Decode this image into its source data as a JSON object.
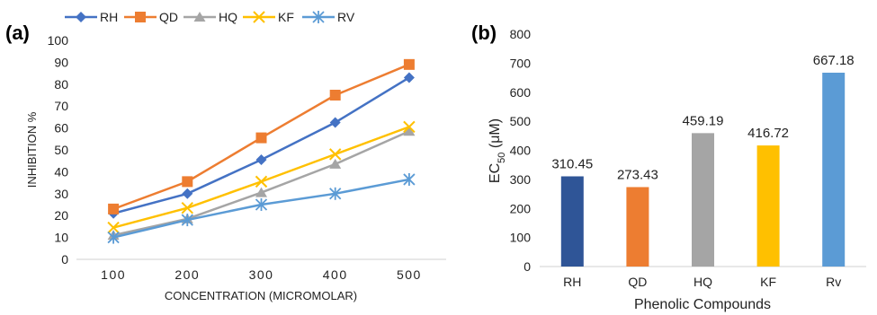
{
  "chart_data": [
    {
      "panel": "(a)",
      "type": "line",
      "categories": [
        "100",
        "200",
        "300",
        "400",
        "500"
      ],
      "series": [
        {
          "name": "RH",
          "color": "#4472c4",
          "marker": "diamond",
          "values": [
            21,
            30,
            45.5,
            62.5,
            83
          ]
        },
        {
          "name": "QD",
          "color": "#ed7d31",
          "marker": "square",
          "values": [
            23,
            35.5,
            55.5,
            75,
            89
          ]
        },
        {
          "name": "HQ",
          "color": "#a5a5a5",
          "marker": "triangle",
          "values": [
            11,
            18.5,
            30.5,
            43.5,
            58.5
          ]
        },
        {
          "name": "KF",
          "color": "#ffc000",
          "marker": "x",
          "values": [
            14.5,
            23.5,
            35.5,
            48,
            60.5
          ]
        },
        {
          "name": "RV",
          "color": "#5b9bd5",
          "marker": "star",
          "values": [
            10,
            18,
            25,
            30,
            36.5
          ]
        }
      ],
      "xlabel": "CONCENTRATION (MICROMOLAR)",
      "ylabel": "INHIBITION %",
      "ylim": [
        0,
        100
      ],
      "yticks": [
        "0",
        "10",
        "20",
        "30",
        "40",
        "50",
        "60",
        "70",
        "80",
        "90",
        "100"
      ],
      "legend": "top",
      "grid": false
    },
    {
      "panel": "(b)",
      "type": "bar",
      "categories": [
        "RH",
        "QD",
        "HQ",
        "KF",
        "Rv"
      ],
      "values": [
        310.45,
        273.43,
        459.19,
        416.72,
        667.18
      ],
      "data_labels": [
        "310.45",
        "273.43",
        "459.19",
        "416.72",
        "667.18"
      ],
      "colors": [
        "#2f5597",
        "#ed7d31",
        "#a5a5a5",
        "#ffc000",
        "#5b9bd5"
      ],
      "xlabel": "Phenolic Compounds",
      "ylabel_main": "EC",
      "ylabel_sub": "50",
      "ylabel_unit": " (μM)",
      "ylim": [
        0,
        800
      ],
      "yticks": [
        "0",
        "100",
        "200",
        "300",
        "400",
        "500",
        "600",
        "700",
        "800"
      ],
      "grid": false
    }
  ]
}
